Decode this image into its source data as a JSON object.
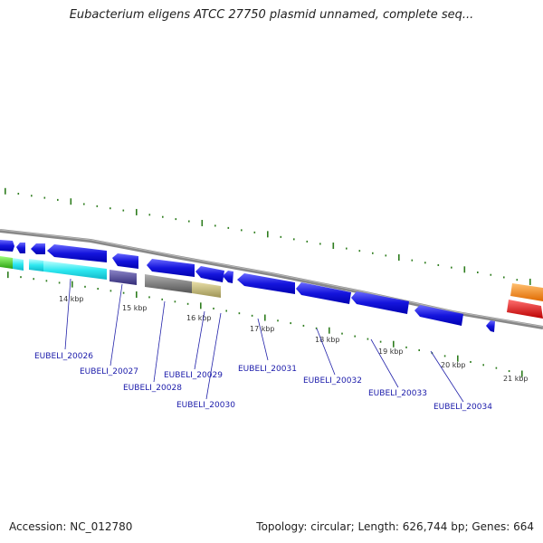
{
  "header": {
    "title": "Eubacterium eligens ATCC 27750 plasmid unnamed, complete seq..."
  },
  "footer": {
    "accession": "Accession: NC_012780",
    "summary": "Topology: circular; Length: 626,744 bp; Genes: 664"
  },
  "map": {
    "kbp_labels": [
      "14 kbp",
      "15 kbp",
      "16 kbp",
      "17 kbp",
      "18 kbp",
      "19 kbp",
      "20 kbp",
      "21 kbp"
    ],
    "gene_labels": [
      "EUBELI_20026",
      "EUBELI_20027",
      "EUBELI_20028",
      "EUBELI_20029",
      "EUBELI_20030",
      "EUBELI_20031",
      "EUBELI_20032",
      "EUBELI_20033",
      "EUBELI_20034"
    ],
    "colors": {
      "backbone": "#8a8a8a",
      "tick": "#2e7d1e",
      "forward_gene": "#1515dd",
      "cyan": "#2ee8f0",
      "green": "#44cc22",
      "slate": "#4a4490",
      "gray": "#777777",
      "khaki": "#c4b97a",
      "orange": "#ff8c10",
      "red": "#ee1111",
      "label_line": "#2222aa"
    }
  }
}
